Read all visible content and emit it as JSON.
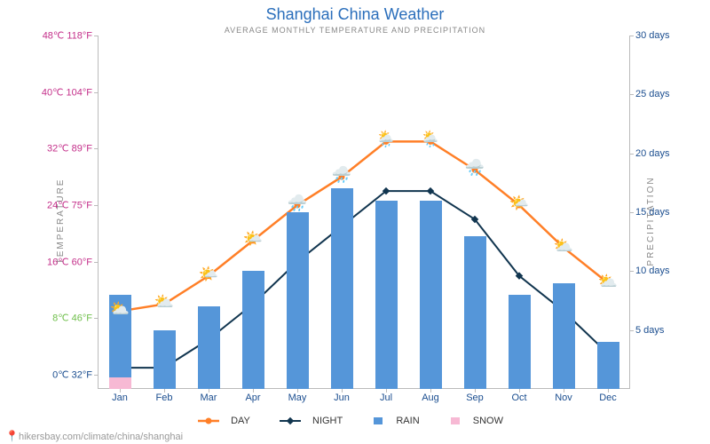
{
  "title": "Shanghai China Weather",
  "subtitle": "AVERAGE MONTHLY TEMPERATURE AND PRECIPITATION",
  "axes": {
    "left_label": "TEMPERATURE",
    "right_label": "PRECIPITATION",
    "left_ticks": [
      {
        "label": "0℃ 32°F",
        "value": 0,
        "color": "#1a4d8f"
      },
      {
        "label": "8℃ 46°F",
        "value": 8,
        "color": "#6fbf4b"
      },
      {
        "label": "16℃ 60°F",
        "value": 16,
        "color": "#c42f8a"
      },
      {
        "label": "24℃ 75°F",
        "value": 24,
        "color": "#c42f8a"
      },
      {
        "label": "32℃ 89°F",
        "value": 32,
        "color": "#c42f8a"
      },
      {
        "label": "40℃ 104°F",
        "value": 40,
        "color": "#c42f8a"
      },
      {
        "label": "48℃ 118°F",
        "value": 48,
        "color": "#c42f8a"
      }
    ],
    "left_min": -2,
    "left_max": 48,
    "right_ticks": [
      {
        "label": "5 days",
        "value": 5
      },
      {
        "label": "10 days",
        "value": 10
      },
      {
        "label": "15 days",
        "value": 15
      },
      {
        "label": "20 days",
        "value": 20
      },
      {
        "label": "25 days",
        "value": 25
      },
      {
        "label": "30 days",
        "value": 30
      }
    ],
    "right_min": 0,
    "right_max": 30
  },
  "months": [
    "Jan",
    "Feb",
    "Mar",
    "Apr",
    "May",
    "Jun",
    "Jul",
    "Aug",
    "Sep",
    "Oct",
    "Nov",
    "Dec"
  ],
  "series": {
    "day": {
      "values": [
        9,
        10,
        14,
        19,
        24,
        28,
        33,
        33,
        29,
        24,
        18,
        13
      ],
      "color": "#ff7f27",
      "width": 2.5,
      "marker": "circle",
      "label": "DAY",
      "icons": [
        "⛅",
        "⛅",
        "🌤️",
        "🌤️",
        "🌧️",
        "🌧️",
        "🌦️",
        "🌦️",
        "🌧️",
        "🌤️",
        "⛅",
        "⛅"
      ]
    },
    "night": {
      "values": [
        1,
        1,
        5,
        10,
        16,
        21,
        26,
        26,
        22,
        14,
        9,
        3
      ],
      "color": "#11354f",
      "width": 2,
      "marker": "diamond",
      "label": "NIGHT"
    },
    "rain": {
      "values": [
        8,
        5,
        7,
        10,
        15,
        17,
        16,
        16,
        13,
        8,
        9,
        4
      ],
      "color": "#5596d9",
      "width_ratio": 0.5,
      "label": "RAIN"
    },
    "snow": {
      "values": [
        1,
        0,
        0,
        0,
        0,
        0,
        0,
        0,
        0,
        0,
        0,
        0
      ],
      "color": "#f7b9d4",
      "width_ratio": 0.5,
      "label": "SNOW"
    }
  },
  "legend": {
    "day": "DAY",
    "night": "NIGHT",
    "rain": "RAIN",
    "snow": "SNOW"
  },
  "footer": {
    "pin": "📍",
    "text": "hikersbay.com/climate/china/shanghai"
  },
  "colors": {
    "title": "#2a6ebb",
    "subtitle": "#888",
    "axis": "#bbb"
  }
}
